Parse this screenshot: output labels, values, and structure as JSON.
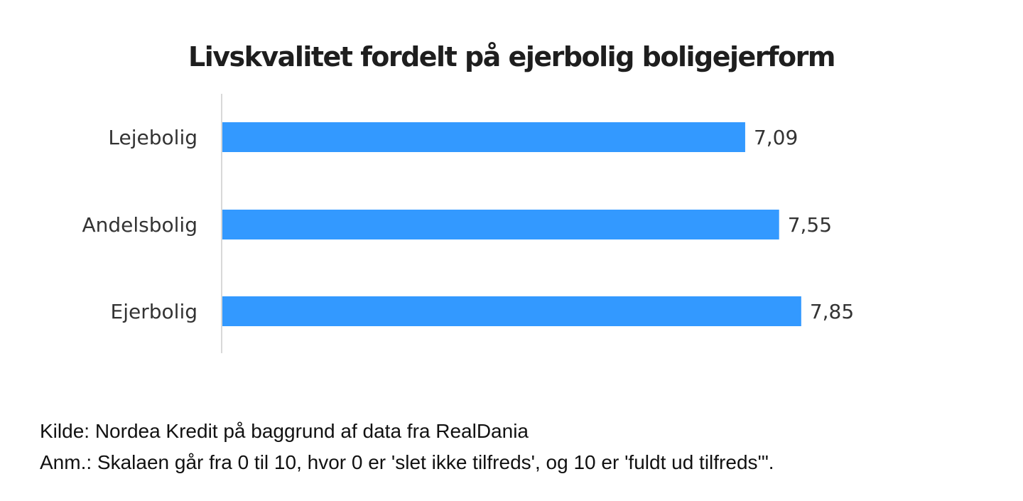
{
  "chart_data": {
    "type": "bar",
    "orientation": "horizontal",
    "title": "Livskvalitet fordelt på ejerbolig boligejerform",
    "categories": [
      "Lejebolig",
      "Andelsbolig",
      "Ejerbolig"
    ],
    "values": [
      7.09,
      7.55,
      7.85
    ],
    "value_labels": [
      "7,09",
      "7,55",
      "7,85"
    ],
    "xlim": [
      0,
      10
    ],
    "grid": false,
    "legend": "none",
    "bar_color": "#3399ff"
  },
  "notes": {
    "source": "Kilde: Nordea Kredit på baggrund af data fra RealDania",
    "remark": "Anm.: Skalaen går fra 0 til 10, hvor 0 er 'slet ikke tilfreds', og 10 er 'fuldt ud tilfreds'\"."
  }
}
